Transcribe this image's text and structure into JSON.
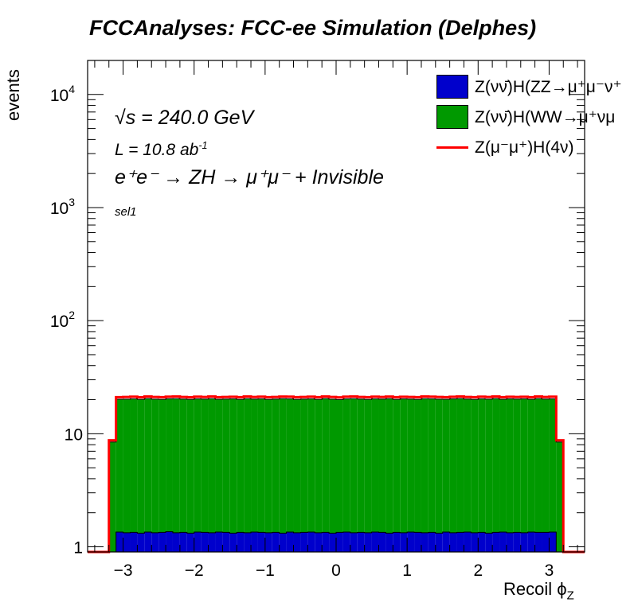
{
  "chart_data": {
    "type": "bar",
    "title": "FCCAnalyses: FCC-ee Simulation (Delphes)",
    "xlabel": "Recoil",
    "xlabel_symbol": "ϕ",
    "xlabel_sub": "Z",
    "ylabel": "events",
    "yscale": "log",
    "xlim": [
      -3.5,
      3.5
    ],
    "ylim": [
      0.9,
      20000
    ],
    "x_ticks": [
      "−3",
      "−2",
      "−1",
      "0",
      "1",
      "2",
      "3"
    ],
    "y_ticks": [
      {
        "value": 1,
        "label": "1"
      },
      {
        "value": 10,
        "label": "10"
      },
      {
        "value": 100,
        "label": "10",
        "exp": "2"
      },
      {
        "value": 1000,
        "label": "10",
        "exp": "3"
      },
      {
        "value": 10000,
        "label": "10",
        "exp": "4"
      }
    ],
    "bin_edges": [
      -3.5,
      -3.2,
      -3.1,
      -3.0,
      -2.9,
      -2.8,
      -2.7,
      -2.6,
      -2.5,
      -2.4,
      -2.3,
      -2.2,
      -2.1,
      -2.0,
      -1.9,
      -1.8,
      -1.7,
      -1.6,
      -1.5,
      -1.4,
      -1.3,
      -1.2,
      -1.1,
      -1.0,
      -0.9,
      -0.8,
      -0.7,
      -0.6,
      -0.5,
      -0.4,
      -0.3,
      -0.2,
      -0.1,
      0.0,
      0.1,
      0.2,
      0.3,
      0.4,
      0.5,
      0.6,
      0.7,
      0.8,
      0.9,
      1.0,
      1.1,
      1.2,
      1.3,
      1.4,
      1.5,
      1.6,
      1.7,
      1.8,
      1.9,
      2.0,
      2.1,
      2.2,
      2.3,
      2.4,
      2.5,
      2.6,
      2.7,
      2.8,
      2.9,
      3.0,
      3.1,
      3.2,
      3.5
    ],
    "series": [
      {
        "name": "Z(νν̄)H(ZZ→μ⁺μ⁻ν⁺",
        "color": "#0000cc",
        "kind": "stacked-fill",
        "values": [
          0,
          0.55,
          1.35,
          1.33,
          1.34,
          1.32,
          1.35,
          1.33,
          1.34,
          1.36,
          1.33,
          1.34,
          1.32,
          1.35,
          1.34,
          1.33,
          1.35,
          1.34,
          1.32,
          1.34,
          1.33,
          1.35,
          1.34,
          1.33,
          1.34,
          1.32,
          1.35,
          1.33,
          1.34,
          1.35,
          1.33,
          1.34,
          1.32,
          1.34,
          1.35,
          1.33,
          1.34,
          1.33,
          1.35,
          1.34,
          1.32,
          1.34,
          1.33,
          1.35,
          1.34,
          1.33,
          1.34,
          1.32,
          1.35,
          1.33,
          1.34,
          1.35,
          1.33,
          1.34,
          1.32,
          1.34,
          1.35,
          1.33,
          1.34,
          1.33,
          1.35,
          1.34,
          1.34,
          1.35,
          0.55,
          0
        ]
      },
      {
        "name": "Z(νν̄)H(WW→μ⁺νμ",
        "color": "#009900",
        "kind": "stacked-fill",
        "values": [
          0,
          7.9,
          18.8,
          18.9,
          19.0,
          18.8,
          19.1,
          18.9,
          18.8,
          19.0,
          19.1,
          18.9,
          18.8,
          19.0,
          18.9,
          19.1,
          18.8,
          18.9,
          19.0,
          18.8,
          19.1,
          18.9,
          19.0,
          18.8,
          18.9,
          19.1,
          19.0,
          18.8,
          18.9,
          19.0,
          18.8,
          19.1,
          18.9,
          18.7,
          19.0,
          19.1,
          18.9,
          18.8,
          19.0,
          18.9,
          19.1,
          18.8,
          19.0,
          18.9,
          18.8,
          19.1,
          19.0,
          18.9,
          18.8,
          19.0,
          19.1,
          18.9,
          18.8,
          19.0,
          18.9,
          19.1,
          18.8,
          19.0,
          18.9,
          19.0,
          18.8,
          19.1,
          18.9,
          19.0,
          7.9,
          0
        ]
      },
      {
        "name": "Z(μ⁻μ⁺)H(4ν)",
        "color": "#ff0000",
        "kind": "stacked-line",
        "values": [
          0,
          0.3,
          0.9,
          0.9,
          0.9,
          0.9,
          0.9,
          0.9,
          0.9,
          0.9,
          0.9,
          0.9,
          0.9,
          0.9,
          0.9,
          0.9,
          0.9,
          0.9,
          0.9,
          0.9,
          0.9,
          0.9,
          0.9,
          0.9,
          0.9,
          0.9,
          0.9,
          0.9,
          0.9,
          0.9,
          0.9,
          0.9,
          0.9,
          0.9,
          0.9,
          0.9,
          0.9,
          0.9,
          0.9,
          0.9,
          0.9,
          0.9,
          0.9,
          0.9,
          0.9,
          0.9,
          0.9,
          0.9,
          0.9,
          0.9,
          0.9,
          0.9,
          0.9,
          0.9,
          0.9,
          0.9,
          0.9,
          0.9,
          0.9,
          0.9,
          0.9,
          0.9,
          0.9,
          0.9,
          0.3,
          0
        ]
      }
    ],
    "legend_position": "top-right",
    "annotations": {
      "energy_sqrt": "√s",
      "energy_rest": " = 240.0 GeV",
      "lumi": "L = 10.8 ab",
      "lumi_exp": "-1",
      "process": "e⁺e⁻ → ZH → μ⁺μ⁻ + Invisible",
      "selection": "sel1"
    }
  }
}
